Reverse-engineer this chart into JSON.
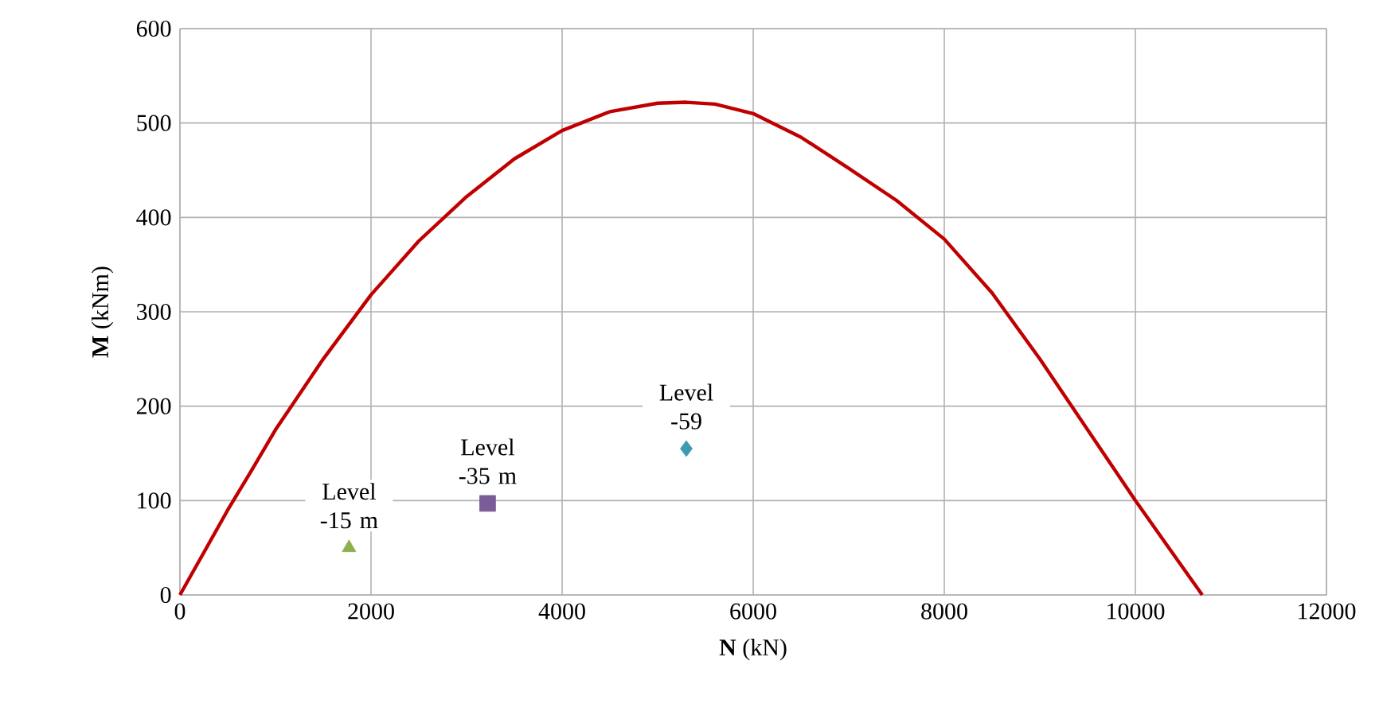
{
  "chart_data": {
    "type": "line",
    "xlabel": "**N** (kN)",
    "ylabel": "**M** (kNm)",
    "xlim": [
      0,
      12000
    ],
    "xticks": [
      0,
      2000,
      4000,
      6000,
      8000,
      10000,
      12000
    ],
    "ylim": [
      0,
      600
    ],
    "yticks": [
      0,
      100,
      200,
      300,
      400,
      500,
      600
    ],
    "grid": true,
    "series": [
      {
        "type": "line",
        "color": "#c00000",
        "marker": "none",
        "x": [
          0,
          250,
          500,
          750,
          1000,
          1500,
          2000,
          2500,
          3000,
          3500,
          4000,
          4500,
          5000,
          5300,
          5600,
          6000,
          6500,
          7000,
          7500,
          8000,
          8500,
          9000,
          9500,
          10000,
          10350,
          10700
        ],
        "values": [
          0,
          45,
          90,
          132,
          175,
          250,
          318,
          375,
          422,
          462,
          492,
          512,
          521,
          522,
          520,
          510,
          485,
          452,
          418,
          377,
          320,
          250,
          175,
          100,
          50,
          0
        ]
      },
      {
        "type": "scatter",
        "color": "#8db04e",
        "marker": "triangle",
        "x": [
          1770
        ],
        "values": [
          50
        ]
      },
      {
        "type": "scatter",
        "color": "#7a5c99",
        "marker": "square",
        "x": [
          3220
        ],
        "values": [
          97
        ]
      },
      {
        "type": "scatter",
        "color": "#3d9bb0",
        "marker": "diamond",
        "x": [
          5300
        ],
        "values": [
          155
        ]
      }
    ],
    "annotations": [
      {
        "text": "Level -15 m",
        "x": 1770,
        "y": 50
      },
      {
        "text": "Level -35 m",
        "x": 3220,
        "y": 97
      },
      {
        "text": "Level -59",
        "x": 5300,
        "y": 155
      }
    ]
  }
}
